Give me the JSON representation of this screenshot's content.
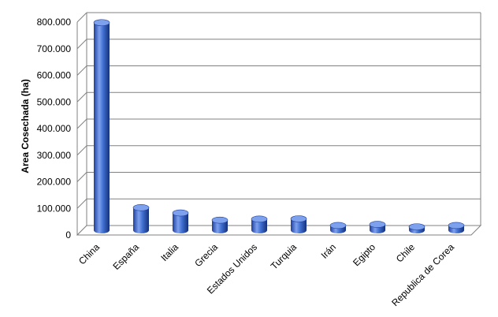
{
  "chart_data": {
    "type": "bar",
    "title": "",
    "xlabel": "",
    "ylabel": "Area Cosechada (ha)",
    "ylim": [
      0,
      800000
    ],
    "yticks": [
      0,
      100000,
      200000,
      300000,
      400000,
      500000,
      600000,
      700000,
      800000
    ],
    "ytick_labels": [
      "0",
      "100.000",
      "200.000",
      "300.000",
      "400.000",
      "500.000",
      "600.000",
      "700.000",
      "800.000"
    ],
    "grid": true,
    "legend": "none",
    "categories": [
      "China",
      "España",
      "Italia",
      "Grecia",
      "Estados Unidos",
      "Turquia",
      "Irán",
      "Egipto",
      "Chile",
      "Republica de Corea"
    ],
    "values": [
      780000,
      85000,
      65000,
      38000,
      42000,
      43000,
      18000,
      22000,
      13000,
      18000
    ],
    "colors": {
      "bar": "#3f6fd1",
      "bar_dark": "#1e3f9c",
      "bar_light": "#7ea1ee",
      "grid": "#808080",
      "axis": "#808080"
    }
  }
}
